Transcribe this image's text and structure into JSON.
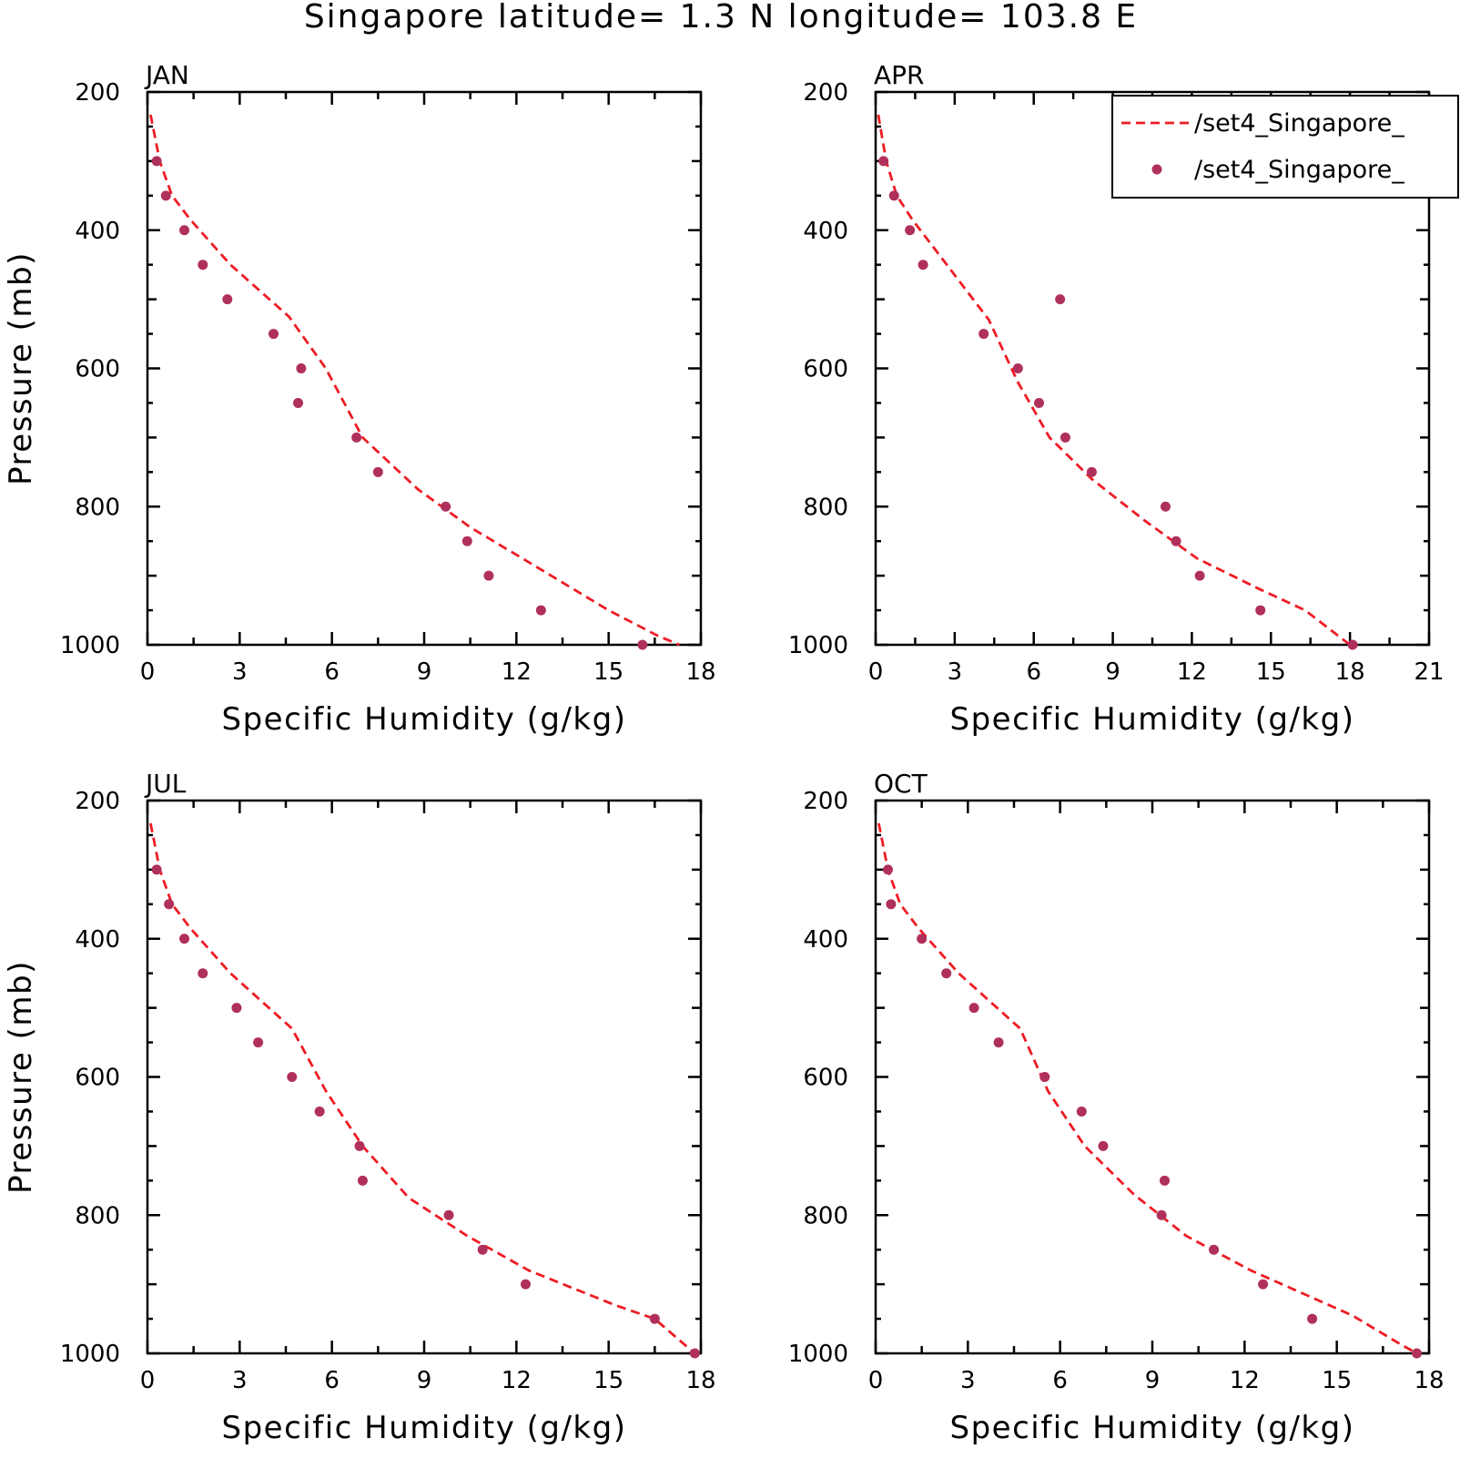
{
  "title": "Singapore  latitude= 1.3 N longitude= 103.8 E",
  "colors": {
    "model_line": "#ee1c24",
    "obs_point": "#b0305c",
    "axis": "#000000"
  },
  "legend": {
    "placement": "top-right of APR panel",
    "entries": [
      {
        "label": "/set4_Singapore_",
        "style": "dashed-line",
        "color": "#ee1c24"
      },
      {
        "label": "/set4_Singapore_",
        "style": "point",
        "color": "#b0305c"
      }
    ]
  },
  "chart_data": [
    {
      "type": "line",
      "panel": "JAN",
      "xlabel": "Specific Humidity (g/kg)",
      "ylabel": "Pressure (mb)",
      "xlim": [
        0,
        18
      ],
      "xticks": [
        0,
        3,
        6,
        9,
        12,
        15,
        18
      ],
      "ylim": [
        1000,
        200
      ],
      "yticks": [
        200,
        400,
        600,
        800,
        1000
      ],
      "y_inverted": true,
      "series": [
        {
          "style": "dashed-line",
          "x": [
            0.1,
            0.4,
            0.8,
            1.4,
            2.7,
            4.6,
            5.8,
            7.0,
            8.8,
            10.5,
            12.2,
            15.0,
            16.6,
            17.3
          ],
          "y": [
            233,
            300,
            350,
            385,
            450,
            525,
            600,
            700,
            775,
            830,
            875,
            950,
            987,
            1000
          ]
        },
        {
          "style": "point",
          "x": [
            0.3,
            0.6,
            1.2,
            1.8,
            2.6,
            4.1,
            5.0,
            4.9,
            6.8,
            7.5,
            9.7,
            10.4,
            11.1,
            12.8,
            16.1
          ],
          "y": [
            300,
            350,
            400,
            450,
            500,
            550,
            600,
            650,
            700,
            750,
            800,
            850,
            900,
            950,
            1000
          ]
        }
      ]
    },
    {
      "type": "line",
      "panel": "APR",
      "xlabel": "Specific Humidity (g/kg)",
      "ylabel": "",
      "xlim": [
        0,
        21
      ],
      "xticks": [
        0,
        3,
        6,
        9,
        12,
        15,
        18,
        21
      ],
      "ylim": [
        1000,
        200
      ],
      "yticks": [
        200,
        400,
        600,
        800,
        1000
      ],
      "y_inverted": true,
      "series": [
        {
          "style": "dashed-line",
          "x": [
            0.1,
            0.4,
            0.8,
            1.4,
            2.7,
            4.3,
            5.4,
            6.6,
            8.2,
            10.2,
            12.2,
            14.6,
            16.3,
            18.0
          ],
          "y": [
            233,
            300,
            350,
            385,
            450,
            530,
            620,
            700,
            760,
            820,
            875,
            920,
            950,
            1000
          ]
        },
        {
          "style": "point",
          "x": [
            0.3,
            0.7,
            1.3,
            1.8,
            7.0,
            4.1,
            5.4,
            6.2,
            7.2,
            8.2,
            11.0,
            11.4,
            12.3,
            14.6,
            18.1
          ],
          "y": [
            300,
            350,
            400,
            450,
            500,
            550,
            600,
            650,
            700,
            750,
            800,
            850,
            900,
            950,
            1000
          ]
        }
      ]
    },
    {
      "type": "line",
      "panel": "JUL",
      "xlabel": "Specific Humidity (g/kg)",
      "ylabel": "Pressure (mb)",
      "xlim": [
        0,
        18
      ],
      "xticks": [
        0,
        3,
        6,
        9,
        12,
        15,
        18
      ],
      "ylim": [
        1000,
        200
      ],
      "yticks": [
        200,
        400,
        600,
        800,
        1000
      ],
      "y_inverted": true,
      "series": [
        {
          "style": "dashed-line",
          "x": [
            0.1,
            0.4,
            0.8,
            1.4,
            2.7,
            4.7,
            5.8,
            7.0,
            8.5,
            10.4,
            12.4,
            15.2,
            16.5,
            17.8
          ],
          "y": [
            233,
            300,
            350,
            385,
            450,
            530,
            620,
            700,
            775,
            830,
            880,
            930,
            950,
            1000
          ]
        },
        {
          "style": "point",
          "x": [
            0.3,
            0.7,
            1.2,
            1.8,
            2.9,
            3.6,
            4.7,
            5.6,
            6.9,
            7.0,
            9.8,
            10.9,
            12.3,
            16.5,
            17.8
          ],
          "y": [
            300,
            350,
            400,
            450,
            500,
            550,
            600,
            650,
            700,
            750,
            800,
            850,
            900,
            950,
            1000
          ]
        }
      ]
    },
    {
      "type": "line",
      "panel": "OCT",
      "xlabel": "Specific Humidity (g/kg)",
      "ylabel": "",
      "xlim": [
        0,
        18
      ],
      "xticks": [
        0,
        3,
        6,
        9,
        12,
        15,
        18
      ],
      "ylim": [
        1000,
        200
      ],
      "yticks": [
        200,
        400,
        600,
        800,
        1000
      ],
      "y_inverted": true,
      "series": [
        {
          "style": "dashed-line",
          "x": [
            0.1,
            0.4,
            0.8,
            1.4,
            2.7,
            4.7,
            5.6,
            6.8,
            8.4,
            10.1,
            12.2,
            15.5,
            17.0,
            17.6
          ],
          "y": [
            233,
            300,
            350,
            385,
            450,
            530,
            620,
            700,
            770,
            830,
            880,
            945,
            985,
            1000
          ]
        },
        {
          "style": "point",
          "x": [
            0.4,
            0.5,
            1.5,
            2.3,
            3.2,
            4.0,
            5.5,
            6.7,
            7.4,
            9.4,
            9.3,
            11.0,
            12.6,
            14.2,
            17.6
          ],
          "y": [
            300,
            350,
            400,
            450,
            500,
            550,
            600,
            650,
            700,
            750,
            800,
            850,
            900,
            950,
            1000
          ]
        }
      ]
    }
  ]
}
